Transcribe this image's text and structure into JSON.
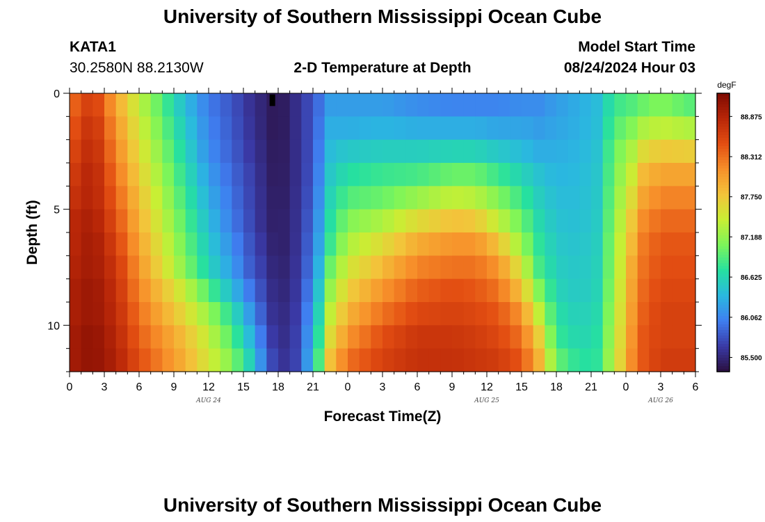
{
  "header": {
    "title": "University of Southern Mississippi Ocean Cube",
    "footer_title": "University of Southern Mississippi Ocean Cube",
    "station": "KATA1",
    "coords": "30.2580N  88.2130W",
    "plot_title": "2-D Temperature at Depth",
    "start_label": "Model Start Time",
    "start_time": "08/24/2024 Hour 03"
  },
  "chart_data": {
    "type": "heatmap",
    "title": "2-D Temperature at Depth",
    "xlabel": "Forecast Time(Z)",
    "ylabel": "Depth (ft)",
    "x_tick_labels": [
      "0",
      "3",
      "6",
      "9",
      "12",
      "15",
      "18",
      "21",
      "0",
      "3",
      "6",
      "9",
      "12",
      "15",
      "18",
      "21",
      "0",
      "3",
      "6"
    ],
    "x_range_hours": [
      0,
      54
    ],
    "date_labels": [
      {
        "text": "AUG 24",
        "hour": 12
      },
      {
        "text": "AUG 25",
        "hour": 36
      },
      {
        "text": "AUG 26",
        "hour": 51
      }
    ],
    "y_tick_labels": [
      "0",
      "5",
      "10"
    ],
    "y_range_ft": [
      0,
      12
    ],
    "depth_levels_ft": [
      0,
      1,
      2,
      3,
      4,
      5,
      6,
      7,
      8,
      9,
      10,
      11
    ],
    "colorbar": {
      "unit": "degF",
      "min": 85.3,
      "max": 89.2,
      "tick_labels": [
        "88.875",
        "88.312",
        "87.750",
        "87.188",
        "86.625",
        "86.062",
        "85.500"
      ],
      "tick_values": [
        88.875,
        88.312,
        87.75,
        87.188,
        86.625,
        86.062,
        85.5
      ],
      "colormap": "turbo-like",
      "colors": [
        "#2a0f3f",
        "#3a3aa6",
        "#3f7ef0",
        "#2ab8e0",
        "#26e0a0",
        "#7cf55a",
        "#c8ef34",
        "#f3c43a",
        "#f7902a",
        "#e34e12",
        "#b82608",
        "#7e0b02"
      ]
    },
    "annotation": "black marker near surface at hour ~17.5",
    "profile_hours": [
      0,
      2,
      4,
      6,
      8,
      10,
      12,
      14,
      15.5,
      17,
      18,
      19.5,
      21,
      22.5,
      24,
      27,
      30,
      33,
      35,
      37,
      39,
      40.5,
      42,
      44,
      45.5,
      47,
      48.5,
      49.5,
      51,
      54
    ],
    "profiles_degF": [
      [
        88.3,
        88.4,
        88.5,
        88.6,
        88.7,
        88.8,
        88.8,
        88.85,
        88.9,
        88.9,
        88.95,
        88.95
      ],
      [
        88.7,
        88.8,
        88.85,
        88.9,
        88.9,
        88.95,
        89.0,
        89.0,
        89.05,
        89.05,
        89.1,
        89.1
      ],
      [
        88.0,
        88.1,
        88.2,
        88.3,
        88.4,
        88.5,
        88.6,
        88.7,
        88.75,
        88.8,
        88.85,
        88.9
      ],
      [
        87.4,
        87.5,
        87.6,
        87.7,
        87.8,
        87.9,
        88.0,
        88.1,
        88.2,
        88.3,
        88.4,
        88.5
      ],
      [
        86.9,
        87.0,
        87.1,
        87.2,
        87.3,
        87.4,
        87.5,
        87.6,
        87.8,
        87.95,
        88.1,
        88.2
      ],
      [
        86.4,
        86.5,
        86.6,
        86.7,
        86.8,
        86.9,
        87.0,
        87.1,
        87.4,
        87.6,
        87.8,
        87.9
      ],
      [
        86.0,
        86.05,
        86.1,
        86.2,
        86.3,
        86.4,
        86.5,
        86.6,
        86.9,
        87.2,
        87.4,
        87.5
      ],
      [
        85.8,
        85.82,
        85.85,
        85.9,
        85.95,
        86.0,
        86.1,
        86.2,
        86.4,
        86.7,
        86.9,
        87.1
      ],
      [
        85.6,
        85.62,
        85.65,
        85.7,
        85.72,
        85.75,
        85.8,
        85.85,
        86.0,
        86.2,
        86.4,
        86.6
      ],
      [
        85.45,
        85.45,
        85.47,
        85.48,
        85.5,
        85.5,
        85.55,
        85.6,
        85.65,
        85.7,
        85.8,
        85.9
      ],
      [
        85.35,
        85.35,
        85.36,
        85.37,
        85.38,
        85.4,
        85.4,
        85.42,
        85.45,
        85.48,
        85.5,
        85.55
      ],
      [
        85.55,
        85.55,
        85.55,
        85.55,
        85.56,
        85.57,
        85.58,
        85.6,
        85.62,
        85.65,
        85.68,
        85.7
      ],
      [
        85.8,
        85.8,
        85.8,
        85.82,
        85.85,
        85.9,
        85.95,
        86.0,
        86.1,
        86.2,
        86.3,
        86.4
      ],
      [
        86.2,
        86.3,
        86.4,
        86.5,
        86.6,
        86.7,
        86.8,
        87.0,
        87.2,
        87.4,
        87.6,
        87.8
      ],
      [
        86.2,
        86.3,
        86.5,
        86.7,
        86.9,
        87.1,
        87.3,
        87.5,
        87.7,
        87.9,
        88.1,
        88.3
      ],
      [
        86.2,
        86.35,
        86.55,
        86.8,
        87.0,
        87.3,
        87.6,
        87.85,
        88.1,
        88.3,
        88.5,
        88.6
      ],
      [
        86.1,
        86.3,
        86.55,
        86.85,
        87.2,
        87.6,
        87.95,
        88.2,
        88.4,
        88.55,
        88.7,
        88.75
      ],
      [
        86.05,
        86.3,
        86.6,
        87.0,
        87.4,
        87.8,
        88.1,
        88.3,
        88.5,
        88.6,
        88.7,
        88.75
      ],
      [
        86.05,
        86.3,
        86.6,
        87.0,
        87.35,
        87.75,
        88.1,
        88.3,
        88.45,
        88.55,
        88.65,
        88.7
      ],
      [
        86.05,
        86.25,
        86.5,
        86.8,
        87.1,
        87.4,
        87.8,
        88.1,
        88.3,
        88.45,
        88.55,
        88.65
      ],
      [
        86.1,
        86.25,
        86.4,
        86.6,
        86.8,
        87.0,
        87.2,
        87.5,
        87.8,
        88.1,
        88.3,
        88.45
      ],
      [
        86.1,
        86.2,
        86.3,
        86.45,
        86.55,
        86.65,
        86.75,
        86.85,
        87.1,
        87.4,
        87.7,
        87.9
      ],
      [
        86.2,
        86.25,
        86.3,
        86.35,
        86.4,
        86.45,
        86.5,
        86.55,
        86.6,
        86.7,
        86.8,
        87.0
      ],
      [
        86.3,
        86.32,
        86.35,
        86.38,
        86.4,
        86.42,
        86.45,
        86.48,
        86.5,
        86.55,
        86.6,
        86.7
      ],
      [
        86.4,
        86.42,
        86.45,
        86.48,
        86.5,
        86.52,
        86.55,
        86.58,
        86.6,
        86.65,
        86.7,
        86.75
      ],
      [
        86.8,
        86.9,
        87.0,
        87.05,
        87.1,
        87.15,
        87.2,
        87.2,
        87.25,
        87.3,
        87.35,
        87.4
      ],
      [
        86.9,
        87.1,
        87.3,
        87.45,
        87.6,
        87.75,
        87.85,
        87.95,
        88.0,
        88.05,
        88.1,
        88.15
      ],
      [
        87.0,
        87.3,
        87.6,
        87.85,
        88.0,
        88.15,
        88.25,
        88.3,
        88.35,
        88.4,
        88.45,
        88.45
      ],
      [
        87.1,
        87.4,
        87.75,
        88.0,
        88.2,
        88.35,
        88.45,
        88.5,
        88.55,
        88.6,
        88.6,
        88.65
      ],
      [
        86.9,
        87.3,
        87.7,
        88.0,
        88.2,
        88.35,
        88.45,
        88.5,
        88.55,
        88.6,
        88.6,
        88.65
      ]
    ]
  }
}
